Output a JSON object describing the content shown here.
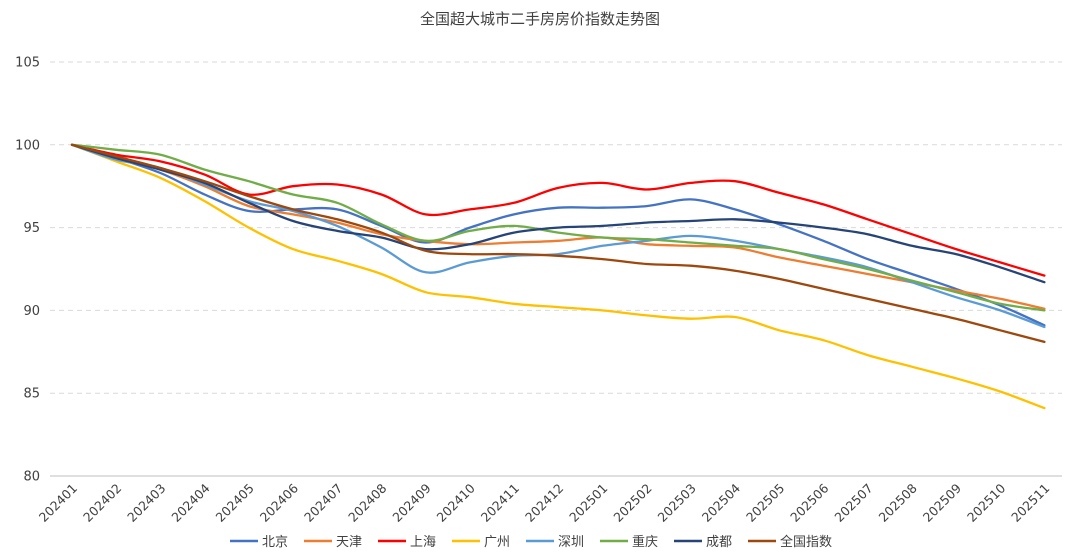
{
  "chart_data": {
    "type": "line",
    "title": "全国超大城市二手房房价指数走势图",
    "xlabel": "",
    "ylabel": "",
    "ylim": [
      80,
      105
    ],
    "yticks": [
      80,
      85,
      90,
      95,
      100,
      105
    ],
    "grid": true,
    "legend_position": "bottom",
    "categories": [
      "202401",
      "202402",
      "202403",
      "202404",
      "202405",
      "202406",
      "202407",
      "202408",
      "202409",
      "202410",
      "202411",
      "202412",
      "202501",
      "202502",
      "202503",
      "202504",
      "202505",
      "202506",
      "202507",
      "202508",
      "202509",
      "202510",
      "202511"
    ],
    "series": [
      {
        "name": "北京",
        "color": "#4472c4",
        "values": [
          100,
          99.2,
          98.3,
          97.0,
          96.0,
          96.1,
          96.1,
          95.1,
          94.1,
          95.0,
          95.8,
          96.2,
          96.2,
          96.3,
          96.7,
          96.1,
          95.2,
          94.2,
          93.1,
          92.2,
          91.3,
          90.3,
          89.1
        ]
      },
      {
        "name": "天津",
        "color": "#ed7d31",
        "values": [
          100,
          99.2,
          98.5,
          97.5,
          96.3,
          95.8,
          95.3,
          94.6,
          94.2,
          94.0,
          94.1,
          94.2,
          94.4,
          94.0,
          93.9,
          93.8,
          93.2,
          92.7,
          92.2,
          91.7,
          91.2,
          90.7,
          90.1
        ]
      },
      {
        "name": "上海",
        "color": "#ff0000",
        "values": [
          100,
          99.4,
          99.0,
          98.2,
          97.0,
          97.5,
          97.6,
          97.0,
          95.8,
          96.1,
          96.5,
          97.4,
          97.7,
          97.3,
          97.7,
          97.8,
          97.1,
          96.4,
          95.5,
          94.6,
          93.7,
          92.9,
          92.1
        ]
      },
      {
        "name": "广州",
        "color": "#ffc000",
        "values": [
          100,
          99.0,
          98.0,
          96.6,
          95.0,
          93.7,
          93.0,
          92.2,
          91.1,
          90.8,
          90.4,
          90.2,
          90.0,
          89.7,
          89.5,
          89.6,
          88.8,
          88.2,
          87.3,
          86.6,
          85.9,
          85.1,
          84.1
        ]
      },
      {
        "name": "深圳",
        "color": "#5b9bd5",
        "values": [
          100,
          99.1,
          98.6,
          97.6,
          96.6,
          96.0,
          95.1,
          93.8,
          92.3,
          92.9,
          93.3,
          93.4,
          93.9,
          94.2,
          94.5,
          94.2,
          93.7,
          93.2,
          92.6,
          91.7,
          90.8,
          90.0,
          89.0
        ]
      },
      {
        "name": "重庆",
        "color": "#70ad47",
        "values": [
          100,
          99.7,
          99.4,
          98.5,
          97.8,
          97.0,
          96.5,
          95.2,
          94.2,
          94.8,
          95.1,
          94.7,
          94.4,
          94.3,
          94.1,
          93.9,
          93.7,
          93.1,
          92.5,
          91.8,
          91.1,
          90.4,
          90.0
        ]
      },
      {
        "name": "成都",
        "color": "#264478",
        "values": [
          100,
          99.2,
          98.5,
          97.7,
          96.5,
          95.4,
          94.8,
          94.4,
          93.7,
          94.0,
          94.7,
          95.0,
          95.1,
          95.3,
          95.4,
          95.5,
          95.3,
          95.0,
          94.6,
          93.9,
          93.4,
          92.6,
          91.7
        ]
      },
      {
        "name": "全国指数",
        "color": "#9e480e",
        "values": [
          100,
          99.3,
          98.6,
          97.8,
          96.9,
          96.1,
          95.5,
          94.7,
          93.6,
          93.4,
          93.4,
          93.3,
          93.1,
          92.8,
          92.7,
          92.4,
          91.9,
          91.3,
          90.7,
          90.1,
          89.5,
          88.8,
          88.1
        ]
      }
    ]
  }
}
